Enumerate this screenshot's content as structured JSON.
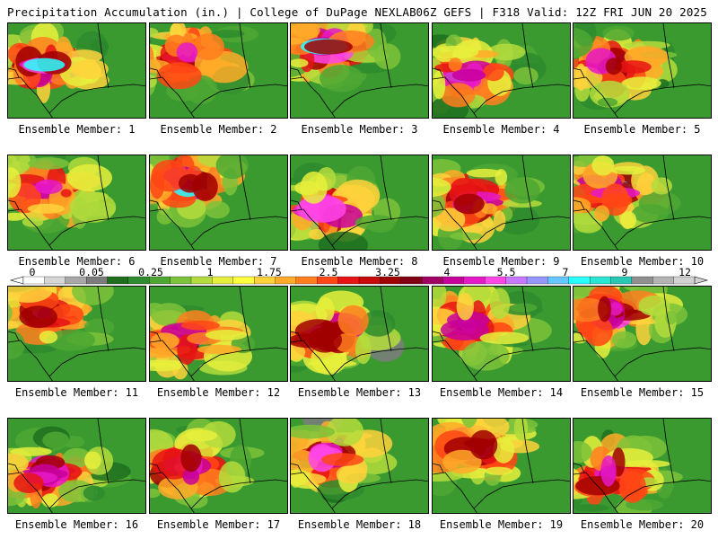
{
  "header": {
    "title": "Precipitation Accumulation (in.) | College of DuPage NEXLAB",
    "run_info": "06Z GEFS | F318 Valid: 12Z FRI JUN 20 2025"
  },
  "colorbar": {
    "labels": [
      "0",
      "0.05",
      "0.25",
      "1",
      "1.75",
      "2.5",
      "3.25",
      "4",
      "5.5",
      "7",
      "9",
      "12"
    ],
    "colors": [
      "#ffffff",
      "#d6d6d6",
      "#a8a8a8",
      "#7c7c7c",
      "#1e6e1e",
      "#2e8b2e",
      "#4da732",
      "#7cc23a",
      "#b4dc3c",
      "#e6f03c",
      "#ffff40",
      "#ffd23c",
      "#ffaa28",
      "#ff7f1e",
      "#ff4614",
      "#e61414",
      "#c80a0a",
      "#a00000",
      "#820014",
      "#a00064",
      "#c8009b",
      "#e619c8",
      "#ff46e6",
      "#c878ff",
      "#9696ff",
      "#64c8ff",
      "#28ffff",
      "#28e6d2",
      "#28c8b4",
      "#909090",
      "#b4b4b4",
      "#d2d2d2"
    ]
  },
  "panels": [
    {
      "label": "Ensemble Member: 1"
    },
    {
      "label": "Ensemble Member: 2"
    },
    {
      "label": "Ensemble Member: 3"
    },
    {
      "label": "Ensemble Member: 4"
    },
    {
      "label": "Ensemble Member: 5"
    },
    {
      "label": "Ensemble Member: 6"
    },
    {
      "label": "Ensemble Member: 7"
    },
    {
      "label": "Ensemble Member: 8"
    },
    {
      "label": "Ensemble Member: 9"
    },
    {
      "label": "Ensemble Member: 10"
    },
    {
      "label": "Ensemble Member: 11"
    },
    {
      "label": "Ensemble Member: 12"
    },
    {
      "label": "Ensemble Member: 13"
    },
    {
      "label": "Ensemble Member: 14"
    },
    {
      "label": "Ensemble Member: 15"
    },
    {
      "label": "Ensemble Member: 16"
    },
    {
      "label": "Ensemble Member: 17"
    },
    {
      "label": "Ensemble Member: 18"
    },
    {
      "label": "Ensemble Member: 19"
    },
    {
      "label": "Ensemble Member: 20"
    }
  ]
}
